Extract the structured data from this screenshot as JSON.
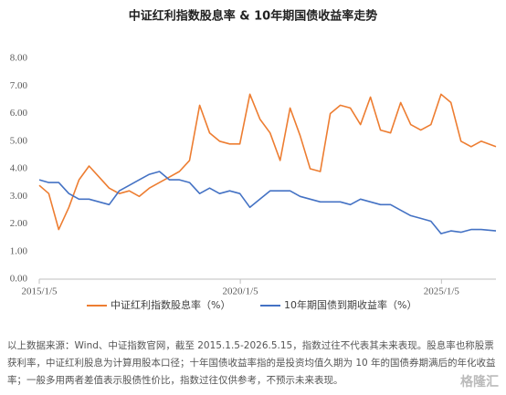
{
  "chart_data": {
    "type": "line",
    "title": "中证红利指数股息率 & 10年期国债收益率走势",
    "x": [
      "2015/1/5",
      "2015/4/1",
      "2015/7/1",
      "2015/10/1",
      "2016/1/1",
      "2016/4/1",
      "2016/7/1",
      "2016/10/1",
      "2017/1/1",
      "2017/4/1",
      "2017/7/1",
      "2017/10/1",
      "2018/1/1",
      "2018/4/1",
      "2018/7/1",
      "2018/10/1",
      "2019/1/1",
      "2019/4/1",
      "2019/7/1",
      "2019/10/1",
      "2020/1/1",
      "2020/4/1",
      "2020/7/1",
      "2020/10/1",
      "2021/1/1",
      "2021/4/1",
      "2021/7/1",
      "2021/10/1",
      "2022/1/1",
      "2022/4/1",
      "2022/7/1",
      "2022/10/1",
      "2023/1/1",
      "2023/4/1",
      "2023/7/1",
      "2023/10/1",
      "2024/1/1",
      "2024/4/1",
      "2024/7/1",
      "2024/10/1",
      "2025/1/1",
      "2025/4/1",
      "2025/7/1",
      "2025/10/1",
      "2026/1/1",
      "2026/5/15"
    ],
    "xlim": [
      "2015/1/5",
      "2026/5/15"
    ],
    "xticks": [
      "2015/1/5",
      "2020/1/5",
      "2025/1/5"
    ],
    "ylim": [
      0,
      8
    ],
    "yticks": [
      {
        "value": 0,
        "label": "0.00"
      },
      {
        "value": 1,
        "label": "1.00"
      },
      {
        "value": 2,
        "label": "2.00"
      },
      {
        "value": 3,
        "label": "3.00"
      },
      {
        "value": 4,
        "label": "4.00"
      },
      {
        "value": 5,
        "label": "5.00"
      },
      {
        "value": 6,
        "label": "6.00"
      },
      {
        "value": 7,
        "label": "7.00"
      },
      {
        "value": 8,
        "label": "8.00"
      }
    ],
    "series": [
      {
        "name": "中证红利指数股息率（%）",
        "color": "#ED7D31",
        "values": [
          3.4,
          3.1,
          1.8,
          2.6,
          3.6,
          4.1,
          3.7,
          3.3,
          3.1,
          3.2,
          3.0,
          3.3,
          3.5,
          3.7,
          3.9,
          4.3,
          6.3,
          5.3,
          5.0,
          4.9,
          4.9,
          6.7,
          5.8,
          5.3,
          4.3,
          6.2,
          5.2,
          4.0,
          3.9,
          6.0,
          6.3,
          6.2,
          5.6,
          6.6,
          5.4,
          5.3,
          6.4,
          5.6,
          5.4,
          5.6,
          6.7,
          6.4,
          5.0,
          4.8,
          5.0,
          4.8
        ]
      },
      {
        "name": "10年期国债到期收益率（%）",
        "color": "#4472C4",
        "values": [
          3.6,
          3.5,
          3.5,
          3.1,
          2.9,
          2.9,
          2.8,
          2.7,
          3.2,
          3.4,
          3.6,
          3.8,
          3.9,
          3.6,
          3.6,
          3.5,
          3.1,
          3.3,
          3.1,
          3.2,
          3.1,
          2.6,
          2.9,
          3.2,
          3.2,
          3.2,
          3.0,
          2.9,
          2.8,
          2.8,
          2.8,
          2.7,
          2.9,
          2.8,
          2.7,
          2.7,
          2.5,
          2.3,
          2.2,
          2.1,
          1.65,
          1.75,
          1.7,
          1.8,
          1.8,
          1.75
        ]
      }
    ]
  },
  "footnote": "以上数据来源：Wind、中证指数官网，截至 2015.1.5-2026.5.15，指数过往不代表其未来表现。股息率也称股票获利率，中证红利股息为计算用股本口径；十年国债收益率指的是投资均值久期为 10 年的国债券期满后的年化收益率；一般多用两者差值表示股债性价比，指数过往仅供参考，不预示未来表现。",
  "watermark": "格隆汇"
}
